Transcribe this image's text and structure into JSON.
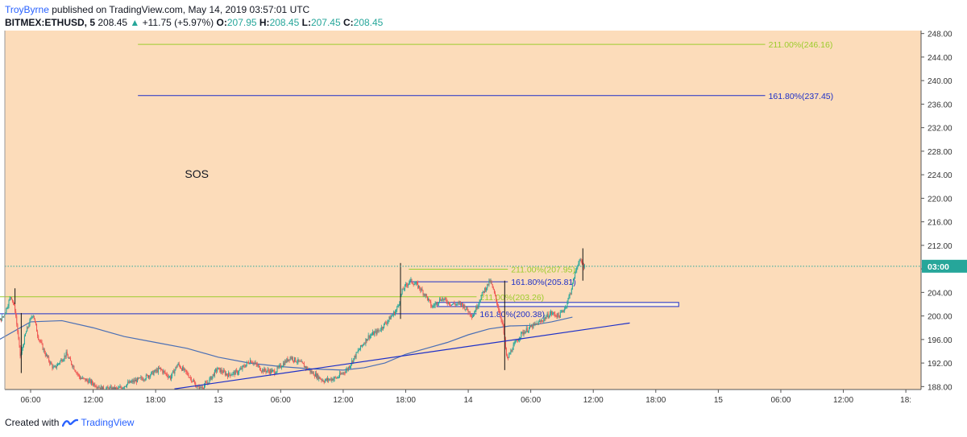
{
  "header": {
    "author": "TroyByrne",
    "published": "published on TradingView.com, May 14, 2019 03:57:01 UTC",
    "symbol": "BITMEX:ETHUSD, 5",
    "last": "208.45",
    "change": "+11.75 (+5.97%)",
    "o_label": "O:",
    "o_value": "207.95",
    "h_label": "H:",
    "h_value": "208.45",
    "l_label": "L:",
    "l_value": "207.45",
    "c_label": "C:",
    "c_value": "208.45"
  },
  "footer": {
    "created_with": "Created with",
    "brand": "TradingView"
  },
  "colors": {
    "background": "#fcdcba",
    "up": "#26a69a",
    "down": "#ef5350",
    "candle_body_up": "#ffffff",
    "candle_body_down": "#000000",
    "fib_green": "#9ccc2c",
    "fib_blue": "#1c2fc8",
    "ma_line": "#4a6fb5",
    "price_line": "#26a69a"
  },
  "chart_data": {
    "type": "candlestick",
    "title": "",
    "annotation": "SOS",
    "current_price_label": "03:00",
    "current_price": 208.45,
    "ylim": [
      187.5,
      248.5
    ],
    "y_ticks": [
      188,
      192,
      196,
      200,
      204,
      208,
      212,
      216,
      220,
      224,
      228,
      232,
      236,
      240,
      244,
      248
    ],
    "y_tick_labels": [
      "188.00",
      "192.00",
      "196.00",
      "200.00",
      "204.00",
      "208.00",
      "212.00",
      "216.00",
      "220.00",
      "224.00",
      "228.00",
      "232.00",
      "236.00",
      "240.00",
      "244.00",
      "248.00"
    ],
    "x_ticks": [
      {
        "label": "06:00",
        "hours": 6
      },
      {
        "label": "12:00",
        "hours": 12
      },
      {
        "label": "18:00",
        "hours": 18
      },
      {
        "label": "13",
        "hours": 24
      },
      {
        "label": "06:00",
        "hours": 30
      },
      {
        "label": "12:00",
        "hours": 36
      },
      {
        "label": "18:00",
        "hours": 42
      },
      {
        "label": "14",
        "hours": 48
      },
      {
        "label": "06:00",
        "hours": 54
      },
      {
        "label": "12:00",
        "hours": 60
      },
      {
        "label": "18:00",
        "hours": 66
      },
      {
        "label": "15",
        "hours": 72
      },
      {
        "label": "06:00",
        "hours": 78
      },
      {
        "label": "12:00",
        "hours": 84
      },
      {
        "label": "18:",
        "hours": 90
      }
    ],
    "price_path": [
      [
        0,
        194.0
      ],
      [
        1.5,
        195.2
      ],
      [
        2.5,
        198.0
      ],
      [
        3.5,
        200.0
      ],
      [
        4.2,
        203.5
      ],
      [
        4.6,
        201.0
      ],
      [
        5.1,
        193.0
      ],
      [
        5.6,
        197.0
      ],
      [
        6.3,
        200.5
      ],
      [
        6.8,
        196.5
      ],
      [
        7.5,
        193.5
      ],
      [
        8.3,
        191.0
      ],
      [
        9.5,
        193.5
      ],
      [
        10.8,
        189.5
      ],
      [
        11.8,
        188.8
      ],
      [
        13.0,
        187.6
      ],
      [
        14.5,
        187.6
      ],
      [
        15.5,
        188.6
      ],
      [
        17.0,
        189.5
      ],
      [
        18.5,
        191.0
      ],
      [
        19.5,
        189.5
      ],
      [
        20.2,
        191.8
      ],
      [
        21.2,
        190.0
      ],
      [
        22.2,
        187.6
      ],
      [
        23.0,
        188.5
      ],
      [
        24.0,
        191.0
      ],
      [
        25.0,
        190.0
      ],
      [
        26.0,
        190.5
      ],
      [
        27.2,
        192.5
      ],
      [
        28.3,
        190.8
      ],
      [
        29.5,
        190.5
      ],
      [
        31.0,
        193.0
      ],
      [
        32.0,
        192.0
      ],
      [
        33.0,
        190.5
      ],
      [
        34.2,
        189.0
      ],
      [
        35.5,
        189.5
      ],
      [
        36.5,
        191.0
      ],
      [
        37.5,
        194.0
      ],
      [
        38.5,
        196.5
      ],
      [
        39.5,
        197.5
      ],
      [
        40.5,
        199.5
      ],
      [
        41.2,
        201.0
      ],
      [
        41.8,
        204.5
      ],
      [
        42.5,
        206.0
      ],
      [
        43.2,
        205.2
      ],
      [
        44.0,
        203.5
      ],
      [
        44.6,
        201.5
      ],
      [
        45.5,
        203.0
      ],
      [
        46.5,
        202.0
      ],
      [
        47.5,
        202.0
      ],
      [
        48.5,
        200.0
      ],
      [
        49.5,
        204.0
      ],
      [
        50.2,
        206.0
      ],
      [
        50.8,
        202.5
      ],
      [
        51.4,
        198.5
      ],
      [
        51.8,
        192.5
      ],
      [
        52.3,
        194.5
      ],
      [
        53.2,
        197.0
      ],
      [
        54.0,
        198.0
      ],
      [
        55.0,
        199.0
      ],
      [
        56.0,
        200.5
      ],
      [
        56.8,
        200.0
      ],
      [
        57.4,
        201.5
      ],
      [
        57.9,
        204.0
      ],
      [
        58.3,
        207.0
      ],
      [
        58.7,
        209.5
      ],
      [
        59.2,
        208.45
      ]
    ],
    "spikes": [
      {
        "hours": 4.5,
        "high": 204.7,
        "low": 202.0
      },
      {
        "hours": 5.1,
        "high": 200.5,
        "low": 190.3
      },
      {
        "hours": 41.5,
        "high": 209.0,
        "low": 199.5
      },
      {
        "hours": 51.5,
        "high": 206.0,
        "low": 190.8
      },
      {
        "hours": 59.0,
        "high": 211.5,
        "low": 206.0
      }
    ],
    "moving_average": [
      [
        0,
        193.8
      ],
      [
        3,
        196.0
      ],
      [
        6,
        199.0
      ],
      [
        9,
        199.2
      ],
      [
        12,
        198.0
      ],
      [
        15,
        196.5
      ],
      [
        18,
        195.5
      ],
      [
        21,
        194.5
      ],
      [
        24,
        193.0
      ],
      [
        27,
        192.0
      ],
      [
        30,
        191.4
      ],
      [
        33,
        191.0
      ],
      [
        36,
        190.8
      ],
      [
        38,
        191.2
      ],
      [
        40,
        192.0
      ],
      [
        42,
        193.5
      ],
      [
        44,
        194.5
      ],
      [
        46,
        195.5
      ],
      [
        48,
        196.8
      ],
      [
        50,
        197.8
      ],
      [
        52,
        198.3
      ],
      [
        54,
        198.4
      ],
      [
        56,
        199.0
      ],
      [
        58,
        199.8
      ]
    ],
    "trendline": {
      "from": [
        19.8,
        187.6
      ],
      "to": [
        63.5,
        198.8
      ]
    },
    "support_zone": {
      "from_hours": 45.0,
      "to_hours": 68.2,
      "low": 201.6,
      "high": 202.3
    },
    "fib_levels": [
      {
        "label": "211.00%(246.16)",
        "price": 246.16,
        "color": "#9ccc2c",
        "from_hours": 16.3,
        "to_hours": 76.5
      },
      {
        "label": "161.80%(237.45)",
        "price": 237.45,
        "color": "#1c2fc8",
        "from_hours": 16.3,
        "to_hours": 76.5
      },
      {
        "label": "211.00%(207.95)",
        "price": 207.95,
        "color": "#9ccc2c",
        "from_hours": 42.3,
        "to_hours": 51.8
      },
      {
        "label": "161.80%(205.81)",
        "price": 205.81,
        "color": "#1c2fc8",
        "from_hours": 42.3,
        "to_hours": 51.8
      },
      {
        "label": "211.00%(203.26)",
        "price": 203.26,
        "color": "#9ccc2c",
        "from_hours": 0,
        "to_hours": 48.8
      },
      {
        "label": "161.80%(200.38)",
        "price": 200.38,
        "color": "#1c2fc8",
        "from_hours": 0,
        "to_hours": 48.8
      }
    ]
  }
}
